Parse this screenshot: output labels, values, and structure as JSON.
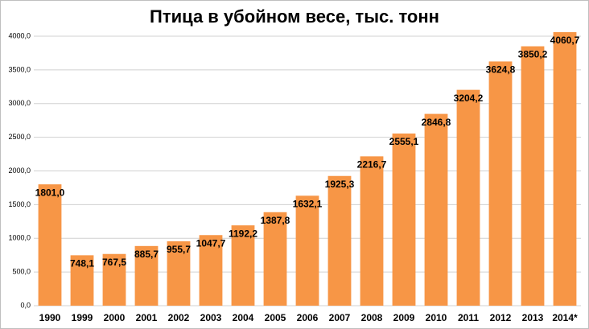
{
  "chart_data": {
    "type": "bar",
    "title": "Птица в убойном весе, тыс. тонн",
    "categories": [
      "1990",
      "1999",
      "2000",
      "2001",
      "2002",
      "2003",
      "2004",
      "2005",
      "2006",
      "2007",
      "2008",
      "2009",
      "2010",
      "2011",
      "2012",
      "2013",
      "2014*"
    ],
    "values": [
      1801.0,
      748.1,
      767.5,
      885.7,
      955.7,
      1047.7,
      1192.2,
      1387.8,
      1632.1,
      1925.3,
      2216.7,
      2555.1,
      2846.8,
      3204.2,
      3624.8,
      3850.2,
      4060.7
    ],
    "value_labels": [
      "1801,0",
      "748,1",
      "767,5",
      "885,7",
      "955,7",
      "1047,7",
      "1192,2",
      "1387,8",
      "1632,1",
      "1925,3",
      "2216,7",
      "2555,1",
      "2846,8",
      "3204,2",
      "3624,8",
      "3850,2",
      "4060,7"
    ],
    "color": "#f79646",
    "ylim": [
      0,
      4000
    ],
    "yticks": [
      {
        "value": 0,
        "label": "0,0"
      },
      {
        "value": 500,
        "label": "500,0"
      },
      {
        "value": 1000,
        "label": "1000,0"
      },
      {
        "value": 1500,
        "label": "1500,0"
      },
      {
        "value": 2000,
        "label": "2000,0"
      },
      {
        "value": 2500,
        "label": "2500,0"
      },
      {
        "value": 3000,
        "label": "3000,0"
      },
      {
        "value": 3500,
        "label": "3500,0"
      },
      {
        "value": 4000,
        "label": "4000,0"
      }
    ],
    "grid": true
  }
}
